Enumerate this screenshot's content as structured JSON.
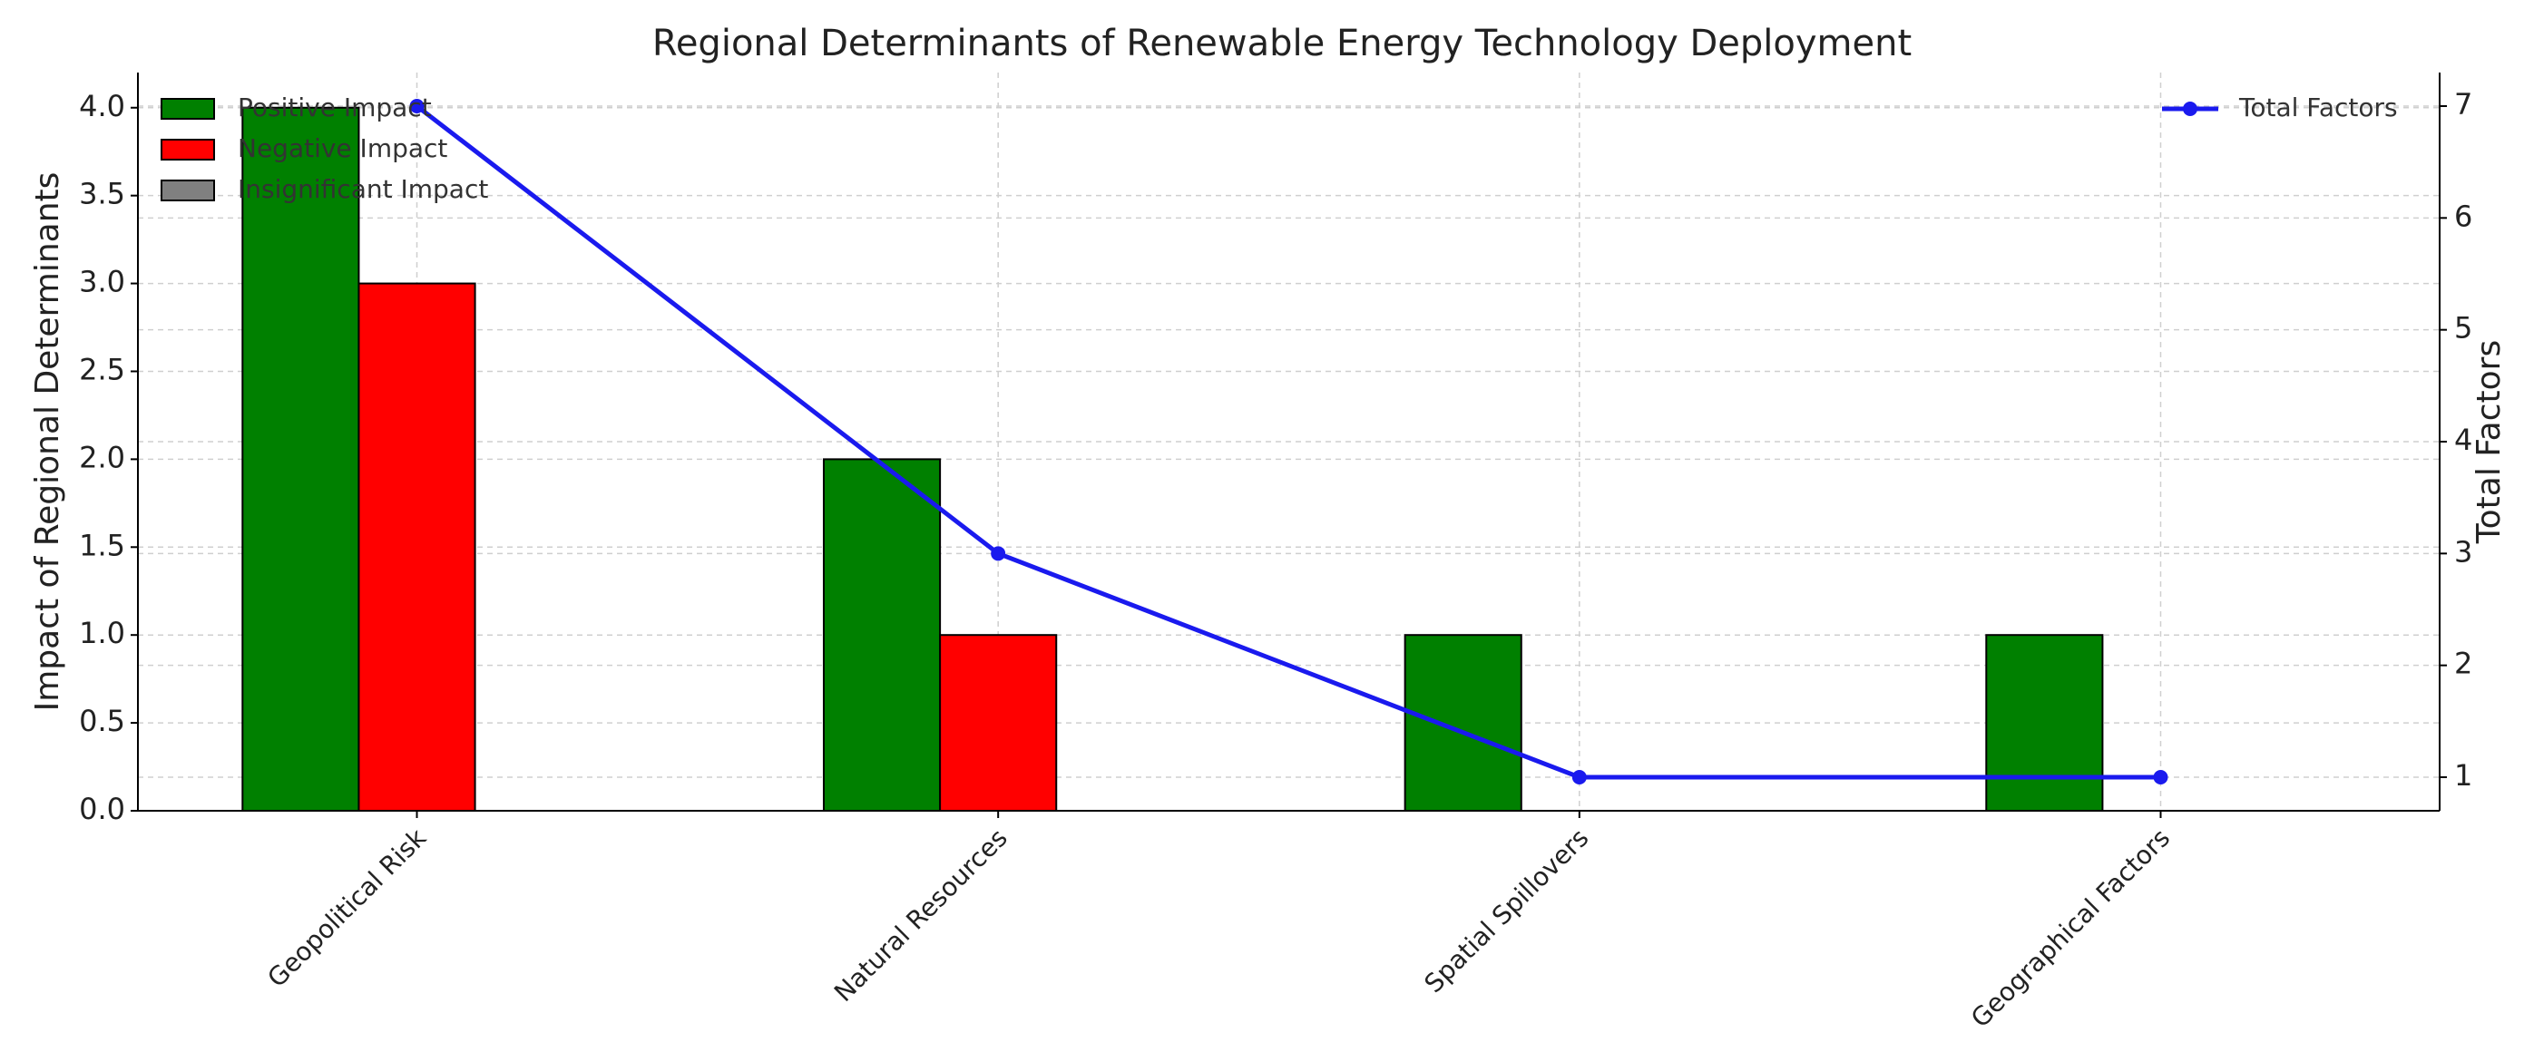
{
  "chart_data": {
    "type": "bar",
    "title": "Regional Determinants of Renewable Energy Technology Deployment",
    "ylabel": "Impact of Regional Determinants",
    "y2label": "Total Factors",
    "categories": [
      "Geopolitical Risk",
      "Natural Resources",
      "Spatial Spillovers",
      "Geographical Factors"
    ],
    "series": [
      {
        "name": "Positive Impact",
        "color": "#008000",
        "values": [
          4,
          2,
          1,
          1
        ]
      },
      {
        "name": "Negative Impact",
        "color": "#ff0000",
        "values": [
          3,
          1,
          0,
          0
        ]
      },
      {
        "name": "Insignificant Impact",
        "color": "#808080",
        "values": [
          0,
          0,
          0,
          0
        ]
      },
      {
        "name": "Total Factors",
        "type": "line",
        "axis": "y2",
        "color": "#1a1aee",
        "values": [
          7,
          3,
          1,
          1
        ]
      }
    ],
    "ylim": [
      0,
      4.2
    ],
    "yticks": [
      {
        "value": 0,
        "label": "0.0"
      },
      0.5,
      {
        "value": 1,
        "label": "1.0"
      },
      1.5,
      {
        "value": 2,
        "label": "2.0"
      },
      2.5,
      {
        "value": 3,
        "label": "3.0"
      },
      3.5,
      {
        "value": 4,
        "label": "4.0"
      }
    ],
    "y2lim": [
      0.7,
      7.3
    ],
    "y2ticks": [
      1,
      2,
      3,
      4,
      5,
      6,
      7
    ],
    "grid": true,
    "legend": "upper left",
    "y2_legend": "upper right"
  }
}
